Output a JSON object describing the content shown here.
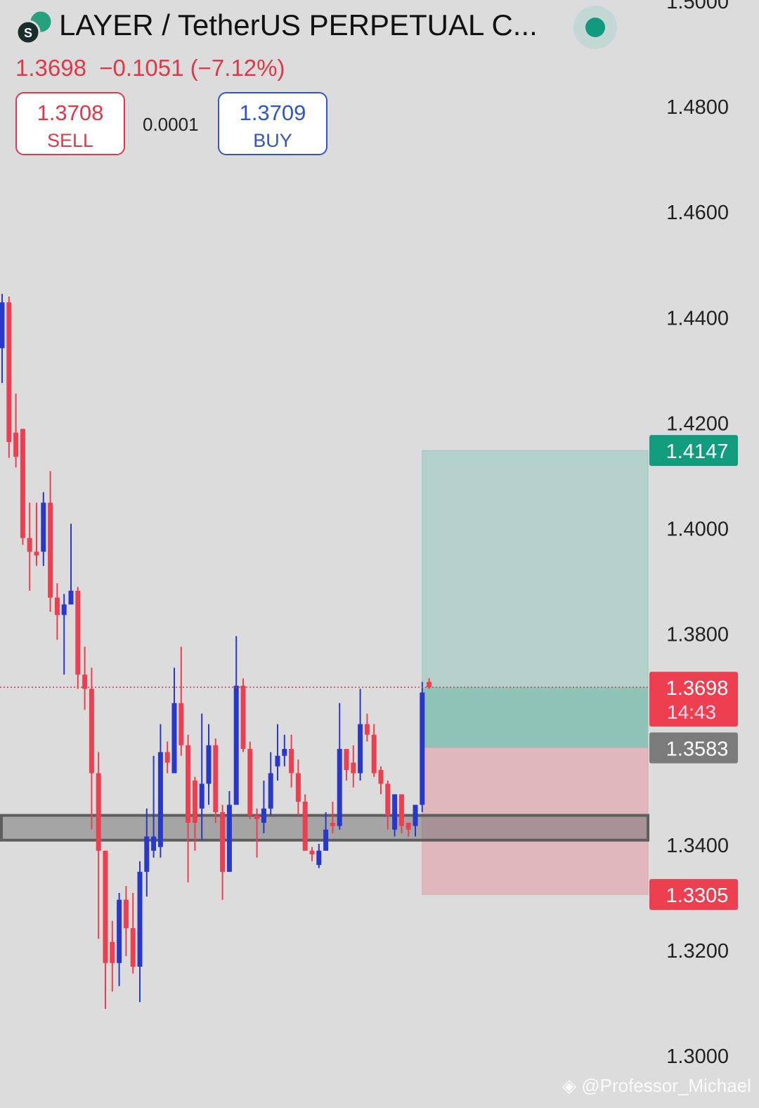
{
  "header": {
    "title": "LAYER / TetherUS PERPETUAL C...",
    "last": "1.3698",
    "change": "−0.1051",
    "change_pct": "(−7.12%)",
    "sell_price": "1.3708",
    "sell_label": "SELL",
    "spread": "0.0001",
    "buy_price": "1.3709",
    "buy_label": "BUY"
  },
  "watermark": "@Professor_Michael",
  "chart_data": {
    "type": "candlestick",
    "ylim": [
      1.3,
      1.5
    ],
    "yticks": [
      {
        "value": 1.5,
        "label": "1.5000"
      },
      {
        "value": 1.48,
        "label": "1.4800"
      },
      {
        "value": 1.46,
        "label": "1.4600"
      },
      {
        "value": 1.44,
        "label": "1.4400"
      },
      {
        "value": 1.42,
        "label": "1.4200"
      },
      {
        "value": 1.4,
        "label": "1.4000"
      },
      {
        "value": 1.38,
        "label": "1.3800"
      },
      {
        "value": 1.34,
        "label": "1.3400"
      },
      {
        "value": 1.32,
        "label": "1.3200"
      },
      {
        "value": 1.3,
        "label": "1.3000"
      }
    ],
    "up_color": "#2838c8",
    "down_color": "#ec3f50",
    "open": [
      1.4341,
      1.4428,
      1.4181,
      1.4188,
      1.3981,
      1.3955,
      1.3955,
      1.4048,
      1.3868,
      1.3835,
      1.3855,
      1.3881,
      1.3722,
      1.3695,
      1.3535,
      1.3388,
      1.3215,
      1.3175,
      1.3295,
      1.3241,
      1.3168,
      1.3348,
      1.3388,
      1.3395,
      1.3575,
      1.3535,
      1.3668,
      1.3588,
      1.3521,
      1.3468,
      1.3515,
      1.3588,
      1.3461,
      1.3348,
      1.3475,
      1.3701,
      1.3581,
      1.3455,
      1.3441,
      1.3468,
      1.3548,
      1.3568,
      1.3581,
      1.3535,
      1.3481,
      1.3388,
      1.3361,
      1.3388,
      1.3441,
      1.3435,
      1.3581,
      1.3555,
      1.3535,
      1.3628,
      1.3608,
      1.3541,
      1.3515,
      1.3428,
      1.3495,
      1.3441,
      1.3435,
      1.3475,
      1.3708
    ],
    "high": [
      1.4444,
      1.4439,
      1.4255,
      1.4188,
      1.4048,
      1.4048,
      1.4068,
      1.4108,
      1.3895,
      1.3875,
      1.4008,
      1.3888,
      1.3775,
      1.3735,
      1.3575,
      1.3388,
      1.3255,
      1.3308,
      1.3321,
      1.3308,
      1.3368,
      1.3468,
      1.3568,
      1.3628,
      1.3595,
      1.3735,
      1.3775,
      1.3608,
      1.3528,
      1.3648,
      1.3628,
      1.3601,
      1.3475,
      1.3501,
      1.3795,
      1.3715,
      1.3595,
      1.3468,
      1.3521,
      1.3575,
      1.3628,
      1.3608,
      1.3608,
      1.3561,
      1.3495,
      1.3395,
      1.3401,
      1.3461,
      1.3481,
      1.3668,
      1.3581,
      1.3588,
      1.3695,
      1.3648,
      1.3628,
      1.3548,
      1.3521,
      1.3495,
      1.3495,
      1.3441,
      1.3475,
      1.3708,
      1.3715
    ],
    "low": [
      1.4275,
      1.4133,
      1.4115,
      1.3968,
      1.3881,
      1.3928,
      1.3928,
      1.3841,
      1.3788,
      1.3722,
      1.3855,
      1.3695,
      1.3655,
      1.3428,
      1.3221,
      1.3088,
      1.3121,
      1.3131,
      1.3188,
      1.3155,
      1.3101,
      1.3301,
      1.3375,
      1.3375,
      1.3535,
      1.3535,
      1.3568,
      1.3328,
      1.3388,
      1.3408,
      1.3475,
      1.3441,
      1.3295,
      1.3348,
      1.3475,
      1.3575,
      1.3448,
      1.3375,
      1.3421,
      1.3455,
      1.3521,
      1.3548,
      1.3508,
      1.3455,
      1.3388,
      1.3368,
      1.3355,
      1.3388,
      1.3421,
      1.3428,
      1.3521,
      1.3508,
      1.3521,
      1.3595,
      1.3528,
      1.3495,
      1.3428,
      1.3415,
      1.3421,
      1.3415,
      1.3415,
      1.3461,
      1.3695
    ],
    "close": [
      1.4428,
      1.4163,
      1.4135,
      1.3981,
      1.3955,
      1.3948,
      1.4048,
      1.3868,
      1.3835,
      1.3855,
      1.3881,
      1.3722,
      1.3695,
      1.3535,
      1.3388,
      1.3175,
      1.3175,
      1.3295,
      1.3241,
      1.3168,
      1.3348,
      1.3415,
      1.3415,
      1.3575,
      1.3555,
      1.3668,
      1.3588,
      1.3441,
      1.3441,
      1.3515,
      1.3588,
      1.3461,
      1.3348,
      1.3475,
      1.3701,
      1.3581,
      1.3455,
      1.3448,
      1.3468,
      1.3535,
      1.3568,
      1.3581,
      1.3535,
      1.3481,
      1.3388,
      1.3381,
      1.3388,
      1.3428,
      1.3435,
      1.3581,
      1.3541,
      1.3535,
      1.3628,
      1.3608,
      1.3535,
      1.3515,
      1.3455,
      1.3495,
      1.3435,
      1.3428,
      1.3475,
      1.3688,
      1.3698
    ],
    "support_zone": [
      1.3408,
      1.3455
    ],
    "position": {
      "target": 1.4147,
      "entry": 1.3583,
      "stop": 1.3305
    },
    "last_price": 1.3698,
    "countdown": "14:43"
  }
}
